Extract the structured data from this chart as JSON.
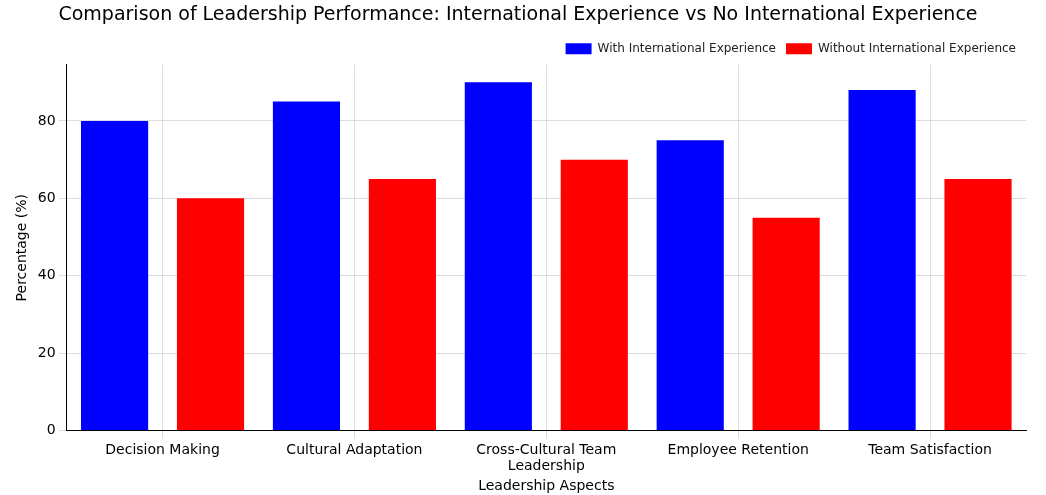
{
  "chart_data": {
    "type": "bar",
    "title": "Comparison of Leadership Performance: International Experience vs No International Experience",
    "xlabel": "Leadership Aspects",
    "ylabel": "Percentage (%)",
    "categories": [
      "Decision Making",
      "Cultural Adaptation",
      "Cross-Cultural Team Leadership",
      "Employee Retention",
      "Team Satisfaction"
    ],
    "series": [
      {
        "name": "With International Experience",
        "color": "#0000ff",
        "values": [
          80,
          85,
          90,
          75,
          88
        ]
      },
      {
        "name": "Without International Experience",
        "color": "#ff0000",
        "values": [
          60,
          65,
          70,
          55,
          65
        ]
      }
    ],
    "ylim": [
      0,
      94.5
    ],
    "yticks": [
      0,
      20,
      40,
      60,
      80
    ],
    "grid": true,
    "legend": "top right"
  }
}
